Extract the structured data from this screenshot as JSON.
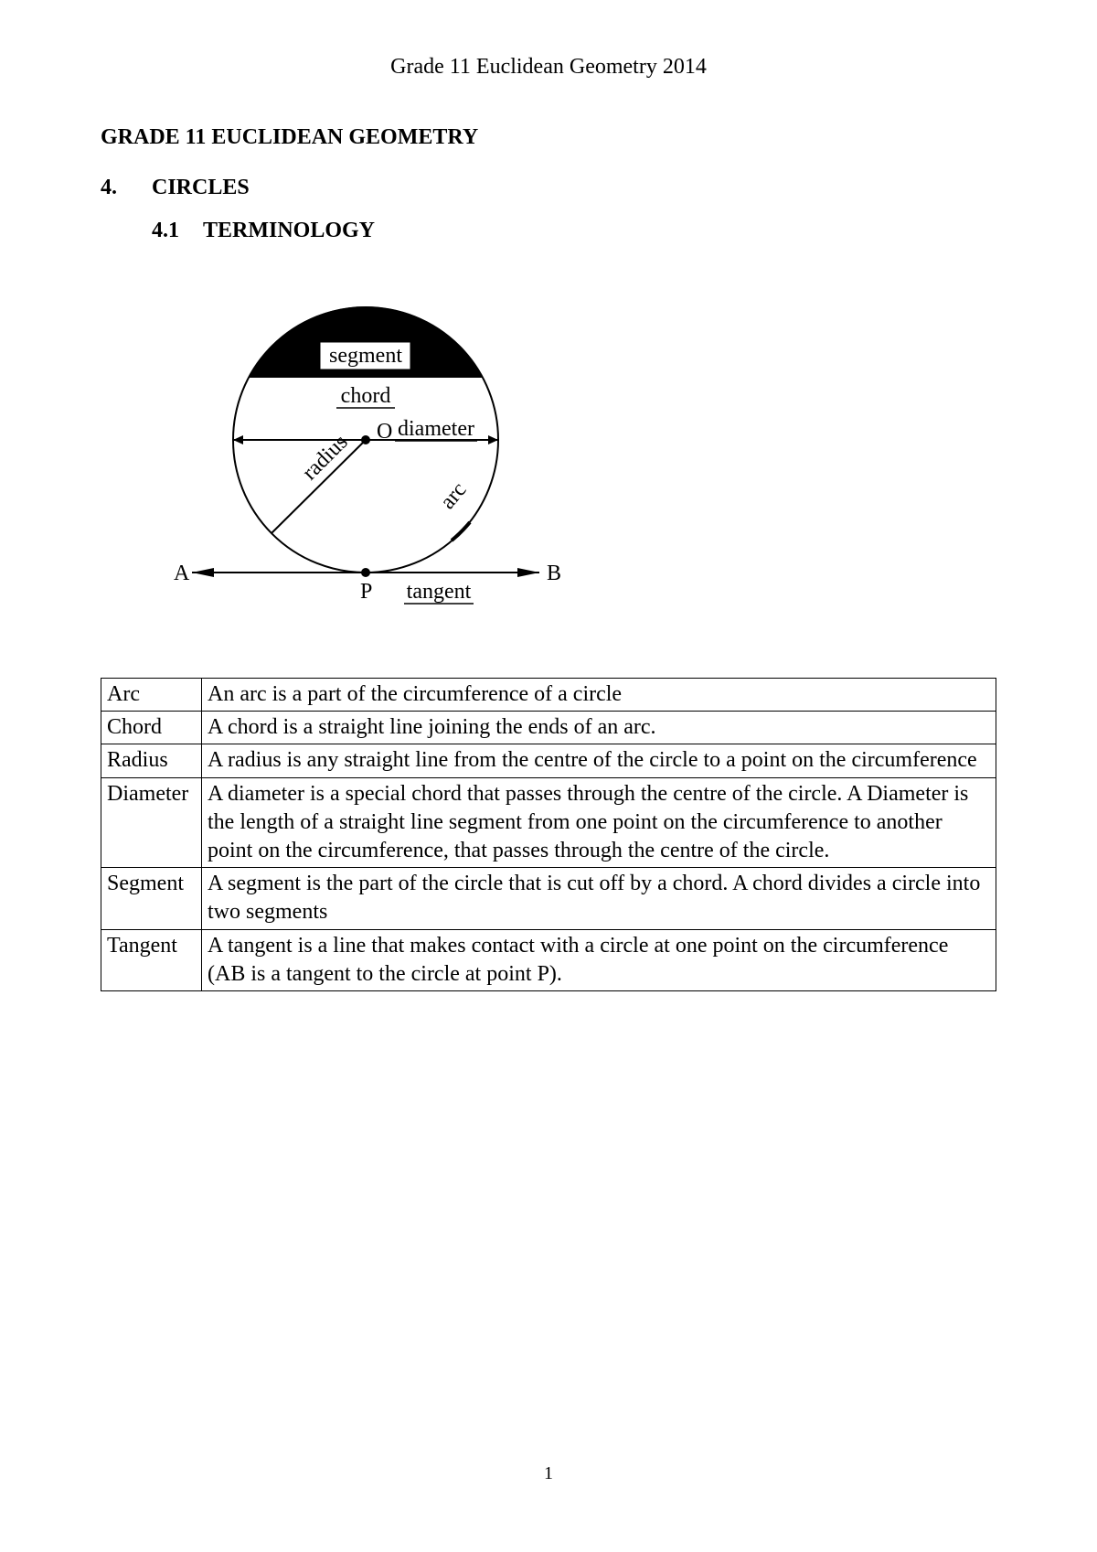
{
  "header": "Grade 11 Euclidean Geometry 2014",
  "title": "GRADE 11 EUCLIDEAN GEOMETRY",
  "section_num": "4.",
  "section_title": "CIRCLES",
  "subsection_num": "4.1",
  "subsection_title": "TERMINOLOGY",
  "diagram": {
    "labels": {
      "segment": "segment",
      "chord": "chord",
      "diameter": "diameter",
      "radius": "radius",
      "arc": "arc",
      "tangent": "tangent",
      "pointA": "A",
      "pointB": "B",
      "pointP": "P",
      "centerO": "O"
    },
    "colors": {
      "stroke": "#000000",
      "fill_segment": "#000000",
      "bg": "#ffffff"
    }
  },
  "definitions": [
    {
      "term": "Arc",
      "def": "An arc is a part of the circumference of a circle"
    },
    {
      "term": "Chord",
      "def": "A chord is a straight line joining the ends of an arc."
    },
    {
      "term": "Radius",
      "def": "A radius is any straight line from the centre of the circle to a point on the circumference"
    },
    {
      "term": "Diameter",
      "def": "A diameter is a special chord that passes through the centre of the circle. A Diameter is the length of a straight line segment from one point on the circumference to another point on the circumference, that passes through the centre of the circle."
    },
    {
      "term": "Segment",
      "def": "A segment is the part of the circle that is cut off by a chord. A chord divides a circle into two segments"
    },
    {
      "term": "Tangent",
      "def": "A tangent is a line that makes contact with a circle at one point on the circumference (AB is a tangent to the circle at point P)."
    }
  ],
  "page_number": "1"
}
